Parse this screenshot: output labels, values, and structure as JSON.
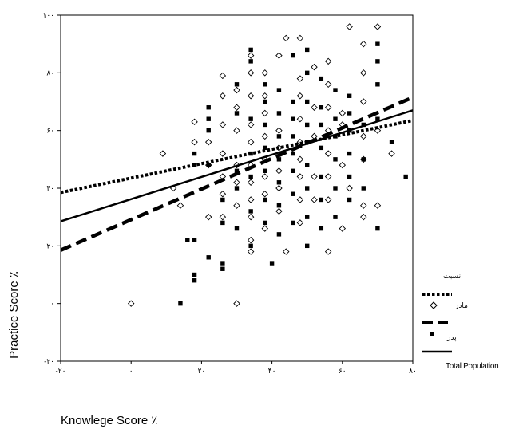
{
  "chart_data": {
    "type": "scatter",
    "xlabel": "Knowlege Score ٪",
    "ylabel": "Practice Score ٪",
    "xlim": [
      -20,
      80
    ],
    "ylim": [
      -20,
      100
    ],
    "x_ticks": [
      -20,
      0,
      20,
      40,
      60,
      80
    ],
    "y_ticks": [
      -20,
      0,
      20,
      40,
      60,
      80,
      100
    ],
    "x_tick_labels": [
      "-۲۰",
      "۰",
      "۲۰",
      "۴۰",
      "۶۰",
      "۸۰"
    ],
    "y_tick_labels": [
      "-۲۰",
      "۰",
      "۲۰",
      "۴۰",
      "۶۰",
      "۸۰",
      "۱۰۰"
    ],
    "grid": false,
    "legend_title": "نسبت",
    "legend_position": "right",
    "series": [
      {
        "name": "مادر",
        "marker": "diamond-open",
        "points": [
          [
            0,
            0
          ],
          [
            9,
            52
          ],
          [
            12,
            40
          ],
          [
            14,
            34
          ],
          [
            18,
            56
          ],
          [
            18,
            63
          ],
          [
            22,
            48
          ],
          [
            22,
            56
          ],
          [
            22,
            30
          ],
          [
            26,
            72
          ],
          [
            26,
            79
          ],
          [
            26,
            62
          ],
          [
            26,
            52
          ],
          [
            26,
            44
          ],
          [
            26,
            38
          ],
          [
            26,
            30
          ],
          [
            30,
            68
          ],
          [
            30,
            74
          ],
          [
            30,
            60
          ],
          [
            30,
            48
          ],
          [
            30,
            42
          ],
          [
            30,
            34
          ],
          [
            30,
            0
          ],
          [
            34,
            86
          ],
          [
            34,
            80
          ],
          [
            34,
            72
          ],
          [
            34,
            62
          ],
          [
            34,
            56
          ],
          [
            34,
            48
          ],
          [
            34,
            42
          ],
          [
            34,
            36
          ],
          [
            34,
            30
          ],
          [
            34,
            22
          ],
          [
            34,
            18
          ],
          [
            38,
            80
          ],
          [
            38,
            72
          ],
          [
            38,
            66
          ],
          [
            38,
            58
          ],
          [
            38,
            50
          ],
          [
            38,
            44
          ],
          [
            38,
            38
          ],
          [
            38,
            26
          ],
          [
            42,
            86
          ],
          [
            42,
            60
          ],
          [
            42,
            54
          ],
          [
            42,
            46
          ],
          [
            42,
            40
          ],
          [
            42,
            32
          ],
          [
            44,
            92
          ],
          [
            44,
            18
          ],
          [
            48,
            92
          ],
          [
            48,
            78
          ],
          [
            48,
            72
          ],
          [
            48,
            64
          ],
          [
            48,
            56
          ],
          [
            48,
            50
          ],
          [
            48,
            44
          ],
          [
            48,
            36
          ],
          [
            48,
            28
          ],
          [
            52,
            82
          ],
          [
            52,
            68
          ],
          [
            52,
            58
          ],
          [
            52,
            44
          ],
          [
            52,
            36
          ],
          [
            56,
            84
          ],
          [
            56,
            76
          ],
          [
            56,
            68
          ],
          [
            56,
            60
          ],
          [
            56,
            52
          ],
          [
            56,
            44
          ],
          [
            56,
            36
          ],
          [
            56,
            18
          ],
          [
            60,
            66
          ],
          [
            60,
            62
          ],
          [
            60,
            48
          ],
          [
            60,
            26
          ],
          [
            62,
            96
          ],
          [
            62,
            40
          ],
          [
            66,
            90
          ],
          [
            66,
            80
          ],
          [
            66,
            70
          ],
          [
            66,
            58
          ],
          [
            66,
            50
          ],
          [
            66,
            34
          ],
          [
            66,
            30
          ],
          [
            70,
            96
          ],
          [
            70,
            60
          ],
          [
            70,
            34
          ],
          [
            74,
            52
          ]
        ]
      },
      {
        "name": "پدر",
        "marker": "square-filled",
        "points": [
          [
            14,
            0
          ],
          [
            16,
            22
          ],
          [
            18,
            22
          ],
          [
            18,
            10
          ],
          [
            18,
            8
          ],
          [
            18,
            52
          ],
          [
            18,
            48
          ],
          [
            22,
            16
          ],
          [
            22,
            48
          ],
          [
            22,
            64
          ],
          [
            22,
            60
          ],
          [
            22,
            68
          ],
          [
            26,
            14
          ],
          [
            26,
            12
          ],
          [
            26,
            28
          ],
          [
            26,
            36
          ],
          [
            30,
            26
          ],
          [
            30,
            40
          ],
          [
            30,
            46
          ],
          [
            30,
            66
          ],
          [
            30,
            76
          ],
          [
            34,
            20
          ],
          [
            34,
            32
          ],
          [
            34,
            44
          ],
          [
            34,
            52
          ],
          [
            34,
            64
          ],
          [
            34,
            84
          ],
          [
            34,
            88
          ],
          [
            38,
            28
          ],
          [
            38,
            36
          ],
          [
            38,
            46
          ],
          [
            38,
            54
          ],
          [
            38,
            62
          ],
          [
            38,
            70
          ],
          [
            38,
            76
          ],
          [
            40,
            14
          ],
          [
            42,
            24
          ],
          [
            42,
            34
          ],
          [
            42,
            42
          ],
          [
            42,
            50
          ],
          [
            42,
            58
          ],
          [
            42,
            66
          ],
          [
            42,
            74
          ],
          [
            46,
            28
          ],
          [
            46,
            38
          ],
          [
            46,
            46
          ],
          [
            46,
            52
          ],
          [
            46,
            58
          ],
          [
            46,
            64
          ],
          [
            46,
            70
          ],
          [
            46,
            86
          ],
          [
            50,
            20
          ],
          [
            50,
            30
          ],
          [
            50,
            40
          ],
          [
            50,
            48
          ],
          [
            50,
            56
          ],
          [
            50,
            62
          ],
          [
            50,
            70
          ],
          [
            50,
            80
          ],
          [
            50,
            88
          ],
          [
            54,
            26
          ],
          [
            54,
            36
          ],
          [
            54,
            44
          ],
          [
            54,
            54
          ],
          [
            54,
            62
          ],
          [
            54,
            68
          ],
          [
            54,
            78
          ],
          [
            58,
            30
          ],
          [
            58,
            40
          ],
          [
            58,
            50
          ],
          [
            58,
            58
          ],
          [
            58,
            64
          ],
          [
            58,
            74
          ],
          [
            62,
            36
          ],
          [
            62,
            44
          ],
          [
            62,
            52
          ],
          [
            62,
            60
          ],
          [
            62,
            66
          ],
          [
            62,
            72
          ],
          [
            66,
            40
          ],
          [
            66,
            50
          ],
          [
            66,
            62
          ],
          [
            70,
            64
          ],
          [
            70,
            76
          ],
          [
            70,
            84
          ],
          [
            70,
            90
          ],
          [
            70,
            26
          ],
          [
            74,
            56
          ],
          [
            78,
            44
          ]
        ]
      }
    ],
    "fit_lines": [
      {
        "name": "مادر",
        "style": "dotted",
        "x": [
          -20,
          80
        ],
        "y": [
          38.5,
          63.5
        ]
      },
      {
        "name": "پدر",
        "style": "dashed",
        "x": [
          -20,
          80
        ],
        "y": [
          18.5,
          71.5
        ]
      },
      {
        "name": "Total Population",
        "style": "solid",
        "x": [
          -20,
          80
        ],
        "y": [
          28.5,
          67.0
        ]
      }
    ]
  }
}
